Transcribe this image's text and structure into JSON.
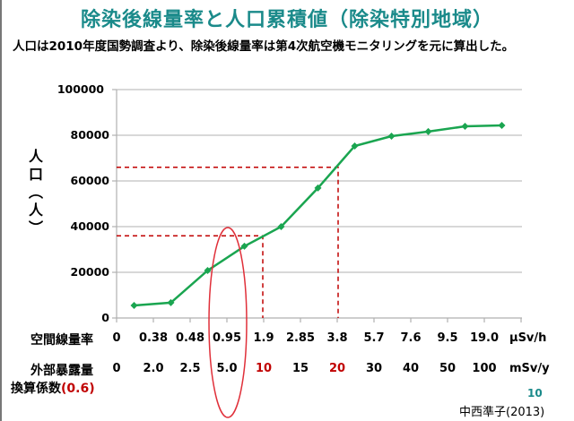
{
  "title": "除染後線量率と人口累積値（除染特別地域）",
  "subtitle": "人口は2010年度国勢調査より、除染後線量率は第4次航空機モニタリングを元に算出した。",
  "y_axis_label": "人口（人）",
  "y_ticks": [
    "100000",
    "80000",
    "60000",
    "40000",
    "20000",
    "0"
  ],
  "rows": {
    "dose_rate": {
      "label": "空間線量率",
      "values": [
        "0",
        "0.38",
        "0.48",
        "0.95",
        "1.9",
        "2.85",
        "3.8",
        "5.7",
        "7.6",
        "9.5",
        "19.0"
      ],
      "unit": "µSv/h"
    },
    "external_exposure": {
      "label": "外部暴露量",
      "values": [
        "0",
        "2.0",
        "2.5",
        "5.0",
        "10",
        "15",
        "20",
        "30",
        "40",
        "50",
        "100"
      ],
      "highlight": [
        "10",
        "20"
      ],
      "unit": "mSv/y"
    },
    "conversion": {
      "label": "換算係数",
      "factor": "(0.6)"
    }
  },
  "footer": {
    "page": "10",
    "author": "中西準子(2013)"
  },
  "colors": {
    "title": "#1a8a8a",
    "line": "#1aa550",
    "guide": "#c00000",
    "ellipse": "#e0303a",
    "grid": "#b0b0b0"
  },
  "chart_data": {
    "type": "line",
    "title": "除染後線量率と人口累積値（除染特別地域）",
    "xlabel": "空間線量率 (µSv/h) / 外部暴露量 (mSv/y)",
    "ylabel": "人口（人）",
    "ylim": [
      0,
      100000
    ],
    "grid": true,
    "legend": "none",
    "categories": [
      "0-0.38",
      "0.38-0.48",
      "0.48-0.95",
      "0.95-1.9",
      "1.9-2.85",
      "2.85-3.8",
      "3.8-5.7",
      "5.7-7.6",
      "7.6-9.5",
      "9.5-19.0",
      "19.0+"
    ],
    "x_tick_labels_uSv_h": [
      "0",
      "0.38",
      "0.48",
      "0.95",
      "1.9",
      "2.85",
      "3.8",
      "5.7",
      "7.6",
      "9.5",
      "19.0"
    ],
    "x_tick_labels_mSv_y": [
      "0",
      "2.0",
      "2.5",
      "5.0",
      "10",
      "15",
      "20",
      "30",
      "40",
      "50",
      "100"
    ],
    "series": [
      {
        "name": "人口累積値",
        "values": [
          5500,
          6700,
          20800,
          31400,
          40000,
          56900,
          75300,
          79600,
          81600,
          83900,
          84300
        ]
      }
    ],
    "annotations": [
      {
        "type": "dashed_guide",
        "x": "1.9 µSv/h (10 mSv/y)",
        "y": 36000
      },
      {
        "type": "dashed_guide",
        "x": "3.8 µSv/h (20 mSv/y)",
        "y": 66000
      },
      {
        "type": "ellipse",
        "around": "0.95 µSv/h / 5.0 mSv/y"
      }
    ]
  }
}
